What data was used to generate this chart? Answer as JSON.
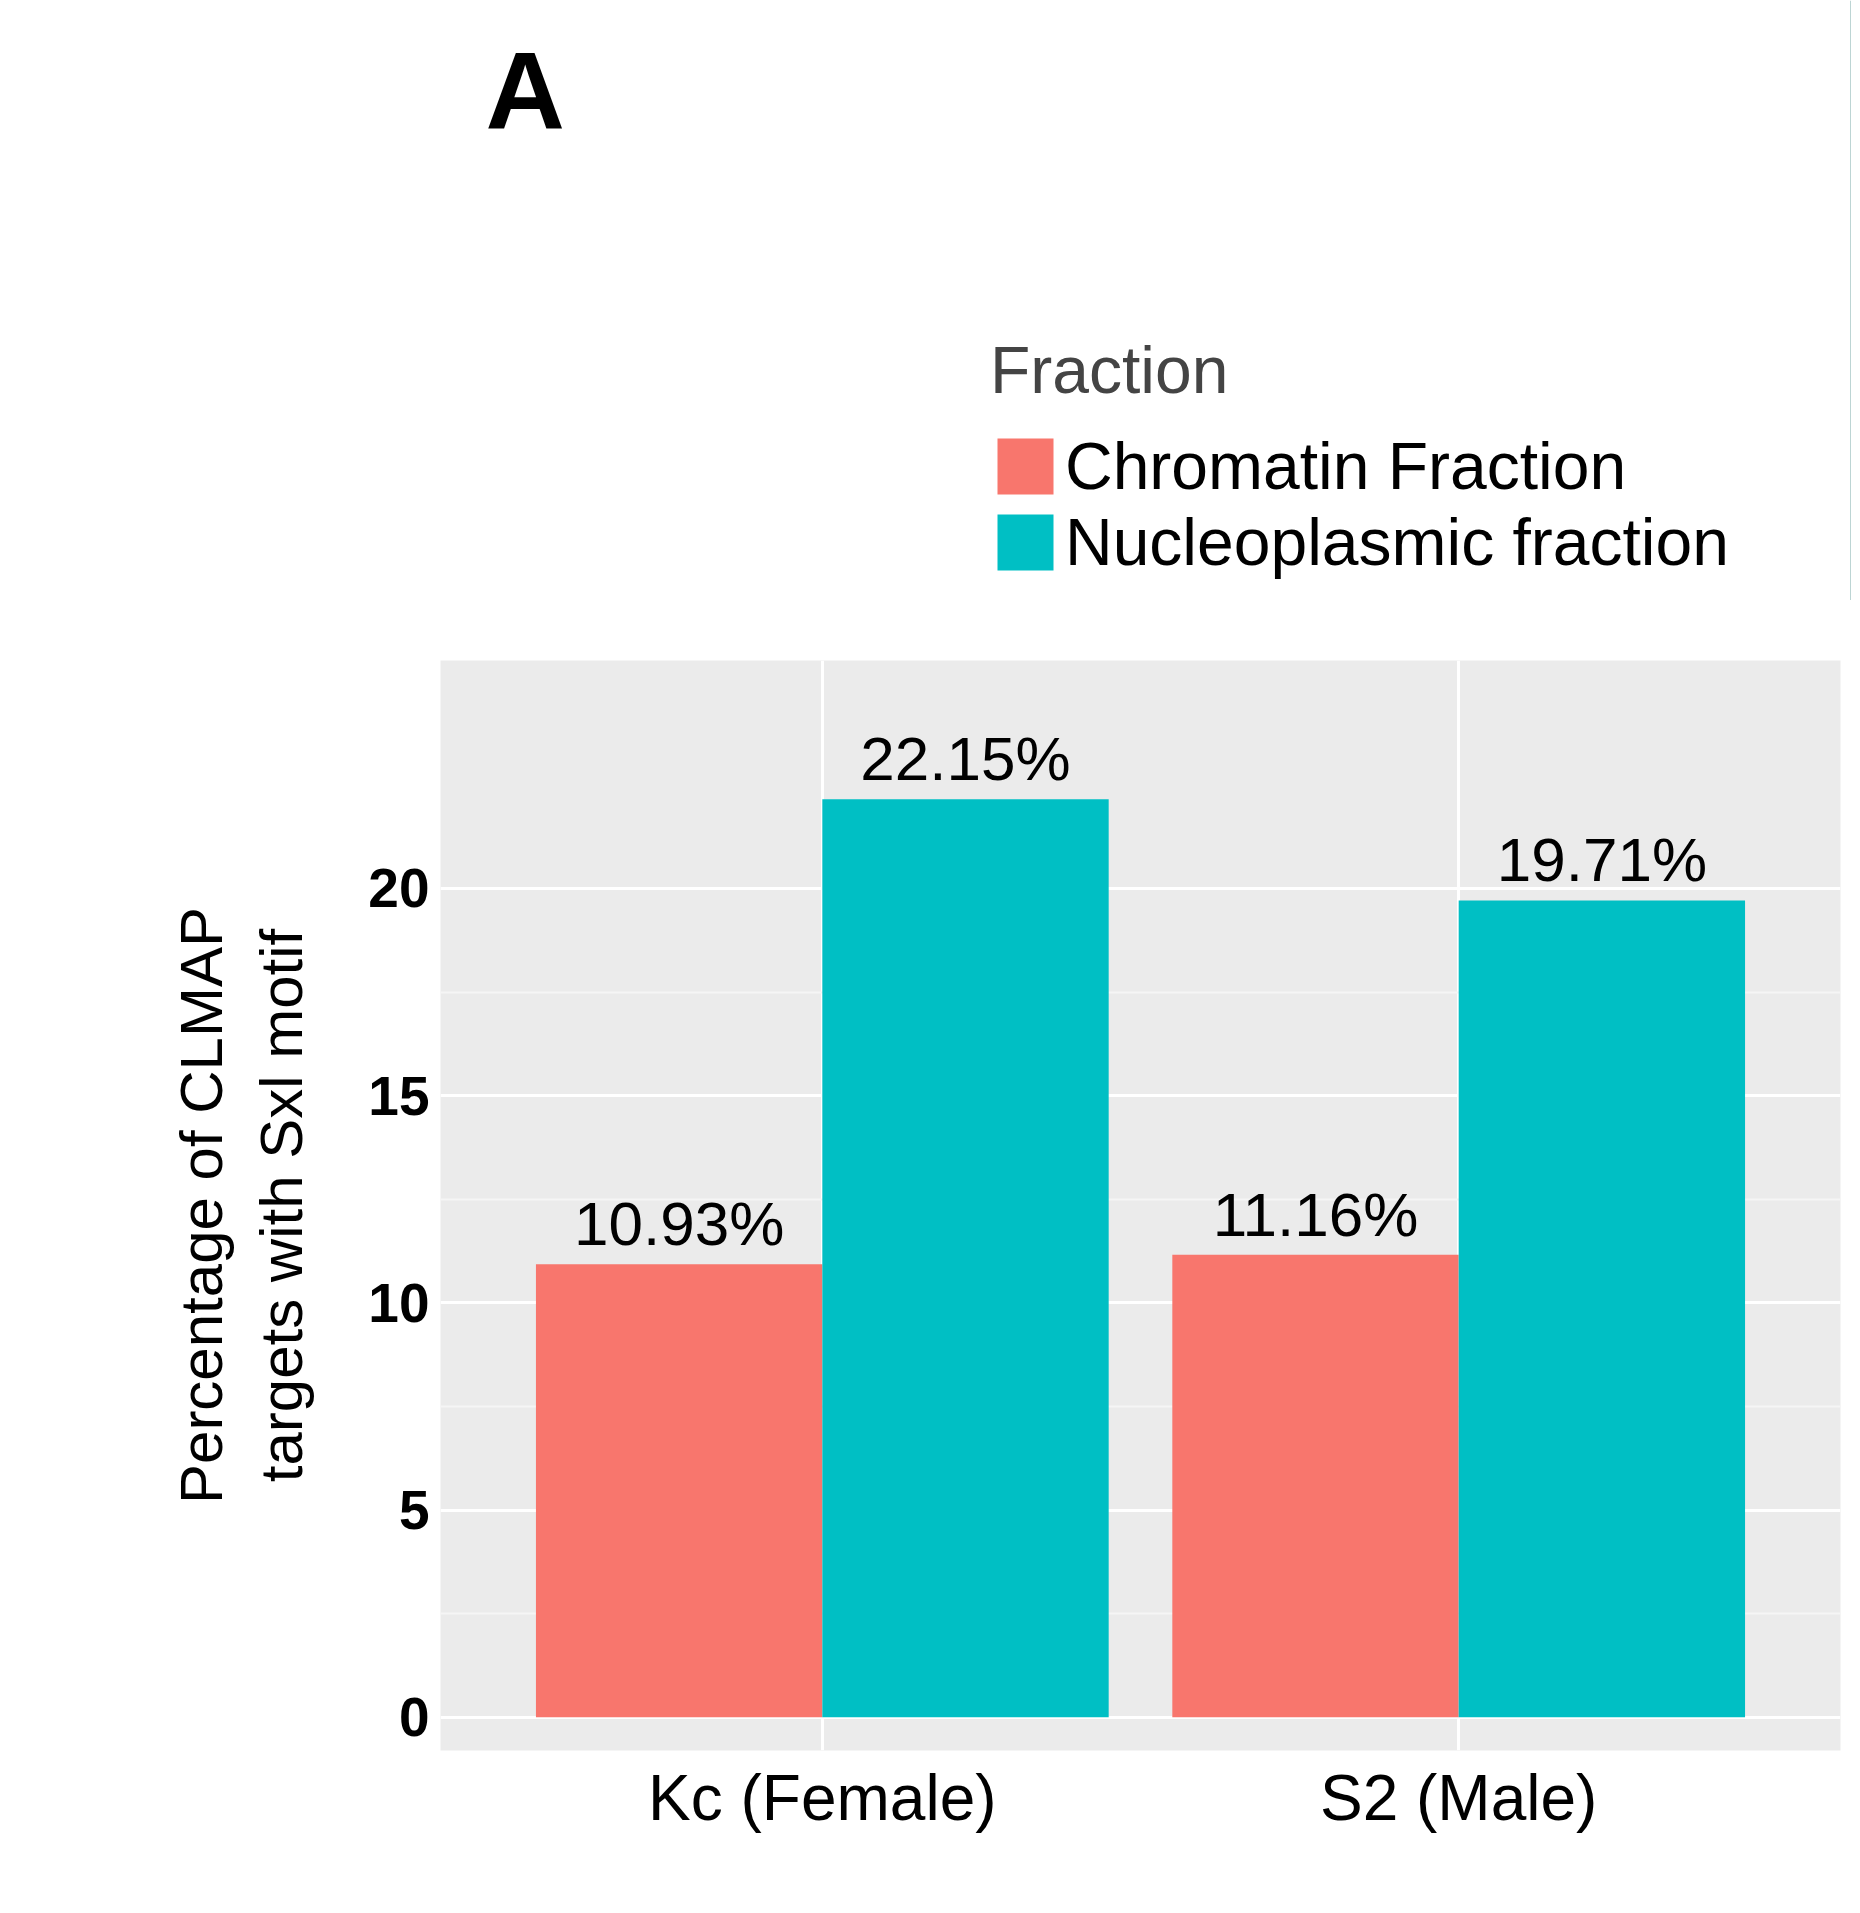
{
  "chart_data": {
    "type": "bar",
    "annotations": [
      "A"
    ],
    "ylabel": "Percentage of CLMAP\ntargets with Sxl motif",
    "legend_title": "Fraction",
    "categories": [
      "Kc (Female)",
      "S2 (Male)"
    ],
    "series": [
      {
        "name": "Chromatin Fraction",
        "color": "#f8766d",
        "values": [
          10.93,
          11.16
        ],
        "value_labels": [
          "10.93%",
          "11.16%"
        ]
      },
      {
        "name": "Nucleoplasmic fraction",
        "color": "#00bfc4",
        "values": [
          22.15,
          19.71
        ],
        "value_labels": [
          "22.15%",
          "19.71%"
        ]
      }
    ],
    "ylim": [
      -0.8,
      25.5
    ],
    "yticks": [
      0,
      5,
      10,
      15,
      20
    ],
    "grid": true,
    "legend": "top"
  }
}
